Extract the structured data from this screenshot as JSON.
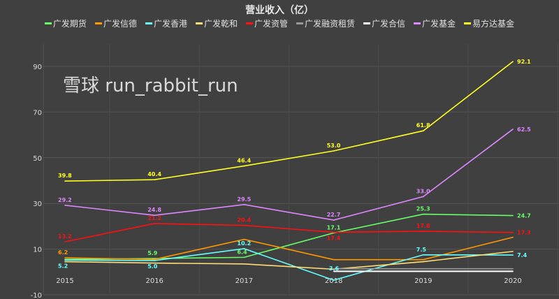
{
  "chart_data": {
    "type": "line",
    "title": "营业收入（亿）",
    "categories": [
      "2015",
      "2016",
      "2017",
      "2018",
      "2019",
      "2020"
    ],
    "ylim": [
      -10,
      100
    ],
    "yticks": [
      -10,
      10,
      30,
      50,
      70,
      90
    ],
    "grid": true,
    "legend_position": "top",
    "series": [
      {
        "name": "广发期货",
        "color": "#66ff66",
        "values": [
          5.5,
          5.9,
          6.4,
          17.1,
          25.3,
          24.7
        ],
        "labels": [
          null,
          "5.9",
          "6.4",
          "17.1",
          "25.3",
          "24.7"
        ]
      },
      {
        "name": "广发信德",
        "color": "#ff9900",
        "values": [
          6.2,
          5.5,
          14.3,
          5.4,
          5.4,
          15.2
        ],
        "labels": [
          "6.2",
          null,
          null,
          null,
          null,
          null
        ]
      },
      {
        "name": "广发香港",
        "color": "#66ffff",
        "values": [
          5.2,
          5.0,
          10.2,
          -3.6,
          7.5,
          7.4
        ],
        "labels": [
          "5.2",
          "5.0",
          "10.2",
          "-3.6",
          "7.5",
          "7.4"
        ]
      },
      {
        "name": "广发乾和",
        "color": "#ffdd77",
        "values": [
          4.5,
          3.9,
          3.5,
          1.2,
          4.5,
          9.0
        ],
        "labels": [
          null,
          null,
          null,
          null,
          null,
          null
        ]
      },
      {
        "name": "广发资管",
        "color": "#ff1111",
        "values": [
          13.2,
          21.2,
          20.4,
          17.4,
          17.8,
          17.3
        ],
        "labels": [
          "13.2",
          "21.2",
          "20.4",
          "17.4",
          "17.8",
          "17.3"
        ]
      },
      {
        "name": "广发融资租赁",
        "color": "#999999",
        "values": [
          null,
          null,
          null,
          1.4,
          1.4,
          1.4
        ],
        "labels": [
          null,
          null,
          null,
          null,
          null,
          null
        ]
      },
      {
        "name": "广发合信",
        "color": "#ffffff",
        "values": [
          null,
          null,
          null,
          0.3,
          0.3,
          0.3
        ],
        "labels": [
          null,
          null,
          null,
          null,
          null,
          null
        ]
      },
      {
        "name": "广发基金",
        "color": "#dd88ff",
        "values": [
          29.2,
          24.8,
          29.5,
          22.7,
          33.0,
          62.5
        ],
        "labels": [
          "29.2",
          "24.8",
          "29.5",
          "22.7",
          "33.0",
          "62.5"
        ]
      },
      {
        "name": "易方达基金",
        "color": "#ffff22",
        "values": [
          39.8,
          40.4,
          46.4,
          53.0,
          61.8,
          92.1
        ],
        "labels": [
          "39.8",
          "40.4",
          "46.4",
          "53.0",
          "61.8",
          "92.1"
        ]
      }
    ]
  },
  "watermark": "雪球 run_rabbit_run"
}
